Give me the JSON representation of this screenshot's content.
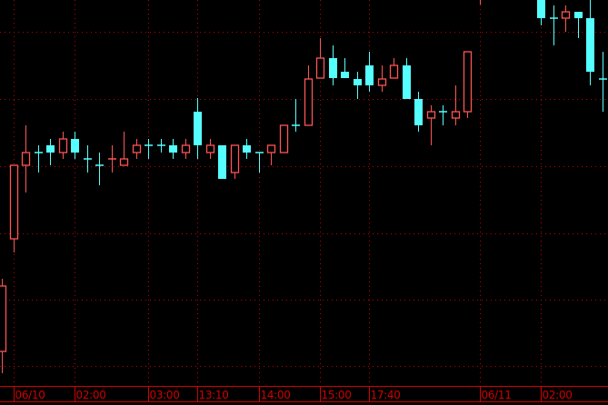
{
  "chart_data": {
    "type": "candlestick",
    "title": "",
    "xlabel": "",
    "ylabel": "",
    "ylim": [
      0,
      446
    ],
    "grid": true,
    "background_color": "#000000",
    "grid_color": "#c00000",
    "up_color": "#ff5555",
    "down_color": "#55ffff",
    "x_tick_labels": [
      "06/10",
      "02:00",
      "03:00",
      "13:10",
      "14:00",
      "15:00",
      "17:40",
      "06/11",
      "02:00"
    ],
    "x_tick_index": [
      1,
      6,
      12,
      16,
      21,
      26,
      30,
      39,
      44
    ],
    "candles": [
      {
        "o": 59,
        "h": 139,
        "l": 35,
        "c": 131
      },
      {
        "o": 183,
        "h": 264,
        "l": 168,
        "c": 264
      },
      {
        "o": 264,
        "h": 308,
        "l": 234,
        "c": 278
      },
      {
        "o": 278,
        "h": 286,
        "l": 256,
        "c": 278,
        "dir": "down"
      },
      {
        "o": 286,
        "h": 293,
        "l": 264,
        "c": 278
      },
      {
        "o": 278,
        "h": 301,
        "l": 271,
        "c": 293
      },
      {
        "o": 293,
        "h": 301,
        "l": 271,
        "c": 278
      },
      {
        "o": 271,
        "h": 286,
        "l": 256,
        "c": 271,
        "dir": "down"
      },
      {
        "o": 264,
        "h": 278,
        "l": 242,
        "c": 264,
        "dir": "down"
      },
      {
        "o": 271,
        "h": 286,
        "l": 256,
        "c": 271,
        "dir": "up"
      },
      {
        "o": 264,
        "h": 301,
        "l": 264,
        "c": 271
      },
      {
        "o": 278,
        "h": 293,
        "l": 271,
        "c": 286
      },
      {
        "o": 286,
        "h": 293,
        "l": 271,
        "c": 286,
        "dir": "down"
      },
      {
        "o": 286,
        "h": 293,
        "l": 278,
        "c": 286,
        "dir": "down"
      },
      {
        "o": 286,
        "h": 293,
        "l": 271,
        "c": 278
      },
      {
        "o": 278,
        "h": 293,
        "l": 271,
        "c": 286
      },
      {
        "o": 323,
        "h": 338,
        "l": 271,
        "c": 286
      },
      {
        "o": 278,
        "h": 293,
        "l": 271,
        "c": 286
      },
      {
        "o": 286,
        "h": 286,
        "l": 249,
        "c": 249
      },
      {
        "o": 256,
        "h": 286,
        "l": 249,
        "c": 286
      },
      {
        "o": 286,
        "h": 293,
        "l": 271,
        "c": 278
      },
      {
        "o": 278,
        "h": 278,
        "l": 256,
        "c": 278,
        "dir": "down"
      },
      {
        "o": 278,
        "h": 286,
        "l": 264,
        "c": 286
      },
      {
        "o": 278,
        "h": 308,
        "l": 278,
        "c": 308
      },
      {
        "o": 308,
        "h": 337,
        "l": 301,
        "c": 308,
        "dir": "down"
      },
      {
        "o": 308,
        "h": 374,
        "l": 308,
        "c": 359
      },
      {
        "o": 360,
        "h": 404,
        "l": 360,
        "c": 382
      },
      {
        "o": 382,
        "h": 396,
        "l": 352,
        "c": 360
      },
      {
        "o": 367,
        "h": 382,
        "l": 360,
        "c": 360
      },
      {
        "o": 359,
        "h": 367,
        "l": 337,
        "c": 352
      },
      {
        "o": 374,
        "h": 389,
        "l": 345,
        "c": 352
      },
      {
        "o": 352,
        "h": 374,
        "l": 345,
        "c": 359
      },
      {
        "o": 360,
        "h": 382,
        "l": 360,
        "c": 374
      },
      {
        "o": 374,
        "h": 382,
        "l": 337,
        "c": 337
      },
      {
        "o": 337,
        "h": 345,
        "l": 301,
        "c": 308
      },
      {
        "o": 316,
        "h": 330,
        "l": 286,
        "c": 323
      },
      {
        "o": 323,
        "h": 330,
        "l": 308,
        "c": 323,
        "dir": "down"
      },
      {
        "o": 316,
        "h": 352,
        "l": 308,
        "c": 323
      },
      {
        "o": 323,
        "h": 389,
        "l": 316,
        "c": 389
      },
      {
        "o": 455,
        "h": 470,
        "l": 441,
        "c": 465
      },
      null,
      null,
      null,
      null,
      {
        "o": 455,
        "h": 460,
        "l": 418,
        "c": 426
      },
      {
        "o": 426,
        "h": 440,
        "l": 396,
        "c": 426,
        "dir": "down"
      },
      {
        "o": 426,
        "h": 440,
        "l": 411,
        "c": 433
      },
      {
        "o": 433,
        "h": 433,
        "l": 404,
        "c": 426
      },
      {
        "o": 426,
        "h": 450,
        "l": 352,
        "c": 367
      },
      {
        "o": 359,
        "h": 389,
        "l": 323,
        "c": 359,
        "dir": "down"
      }
    ]
  }
}
